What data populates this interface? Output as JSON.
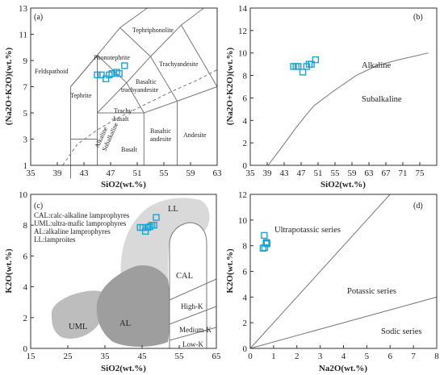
{
  "colors": {
    "marker": "#1aa3d4",
    "light_gray": "#d9d9d9",
    "mid_gray": "#bdbdbd",
    "dark_gray": "#9e9e9e",
    "line": "#777777"
  },
  "chart_data": [
    {
      "panel": "(a)",
      "type": "scatter",
      "xlabel": "SiO2(wt.%)",
      "ylabel": "(Na2O+K2O)(wt.%)",
      "xlim": [
        35,
        63
      ],
      "ylim": [
        1,
        13
      ],
      "xticks": [
        "35",
        "39",
        "43",
        "47",
        "51",
        "55",
        "59",
        "63"
      ],
      "yticks": [
        "1",
        "3",
        "5",
        "7",
        "9",
        "11",
        "13"
      ],
      "fields": [
        "Feldspathoid",
        "Tephriphonolite",
        "Phonotephrite",
        "Trachyandesite",
        "Tephrite",
        "Basaltic",
        "trachyandesite",
        "Trachy",
        "-basalt",
        "Basaltic",
        "andesite",
        "Andesite",
        "Basalt",
        "Alkaline",
        "Subalkaline"
      ],
      "points": [
        [
          45.0,
          7.9
        ],
        [
          45.6,
          7.9
        ],
        [
          46.3,
          7.6
        ],
        [
          46.8,
          7.9
        ],
        [
          47.2,
          8.0
        ],
        [
          47.9,
          8.1
        ],
        [
          48.3,
          8.0
        ],
        [
          49.1,
          8.6
        ]
      ]
    },
    {
      "panel": "(b)",
      "type": "scatter",
      "xlabel": "SiO2(wt.%)",
      "ylabel": "(Na2O+K2O)(wt.%)",
      "xlim": [
        35,
        79
      ],
      "ylim": [
        0,
        14
      ],
      "xticks": [
        "35",
        "39",
        "43",
        "47",
        "51",
        "55",
        "59",
        "63",
        "67",
        "71",
        "75"
      ],
      "yticks": [
        "0",
        "2",
        "4",
        "6",
        "8",
        "10",
        "12",
        "14"
      ],
      "regions": [
        "Alkaline",
        "Subalkaline"
      ],
      "boundary": [
        [
          39.2,
          0
        ],
        [
          40,
          0.4
        ],
        [
          43.2,
          2
        ],
        [
          45.5,
          3.2
        ],
        [
          48,
          4.4
        ],
        [
          50,
          5.3
        ],
        [
          54.6,
          6.6
        ],
        [
          60,
          8
        ],
        [
          65,
          8.9
        ],
        [
          70,
          9.4
        ],
        [
          77,
          10
        ]
      ],
      "points": [
        [
          45.2,
          8.8
        ],
        [
          45.8,
          8.8
        ],
        [
          46.3,
          8.8
        ],
        [
          47.4,
          8.3
        ],
        [
          48.3,
          8.8
        ],
        [
          48.9,
          9.0
        ],
        [
          49.4,
          9.0
        ],
        [
          50.4,
          9.4
        ]
      ]
    },
    {
      "panel": "(c)",
      "type": "scatter",
      "xlabel": "SiO2(wt.%)",
      "ylabel": "K2O(wt.%)",
      "xlim": [
        15,
        65
      ],
      "ylim": [
        0,
        10
      ],
      "xticks": [
        "15",
        "25",
        "35",
        "45",
        "55",
        "65"
      ],
      "yticks": [
        "0",
        "2",
        "4",
        "6",
        "8",
        "10"
      ],
      "legend": [
        "CAL:calc-alkaline lamprophyres",
        "UML:ultra-mafic lamprophyres",
        "AL:alkaline lamprophyres",
        "LL:lamproites"
      ],
      "regions": [
        "LL",
        "CAL",
        "UML",
        "AL",
        "High-K",
        "Medium-K",
        "Low-K"
      ],
      "points": [
        [
          44.5,
          7.85
        ],
        [
          45.2,
          7.85
        ],
        [
          45.9,
          7.6
        ],
        [
          46.5,
          7.85
        ],
        [
          47.1,
          7.9
        ],
        [
          47.6,
          8.0
        ],
        [
          48.2,
          8.0
        ],
        [
          48.8,
          8.5
        ]
      ]
    },
    {
      "panel": "(d)",
      "type": "scatter",
      "xlabel": "Na2O(wt.%)",
      "ylabel": "K2O(wt.%)",
      "xlim": [
        0,
        8
      ],
      "ylim": [
        0,
        12
      ],
      "xticks": [
        "0",
        "1",
        "2",
        "3",
        "4",
        "5",
        "6",
        "7",
        "8"
      ],
      "yticks": [
        "0",
        "2",
        "4",
        "6",
        "8",
        "10",
        "12"
      ],
      "regions": [
        "Ultrapotassic series",
        "Potassic series",
        "Sodic series"
      ],
      "lines": [
        [
          [
            0,
            0
          ],
          [
            6,
            12
          ]
        ],
        [
          [
            0,
            0
          ],
          [
            8,
            4
          ]
        ]
      ],
      "points": [
        [
          0.55,
          7.8
        ],
        [
          0.62,
          7.85
        ],
        [
          0.68,
          8.2
        ],
        [
          0.7,
          8.25
        ],
        [
          0.6,
          8.8
        ],
        [
          0.72,
          8.15
        ]
      ]
    }
  ]
}
